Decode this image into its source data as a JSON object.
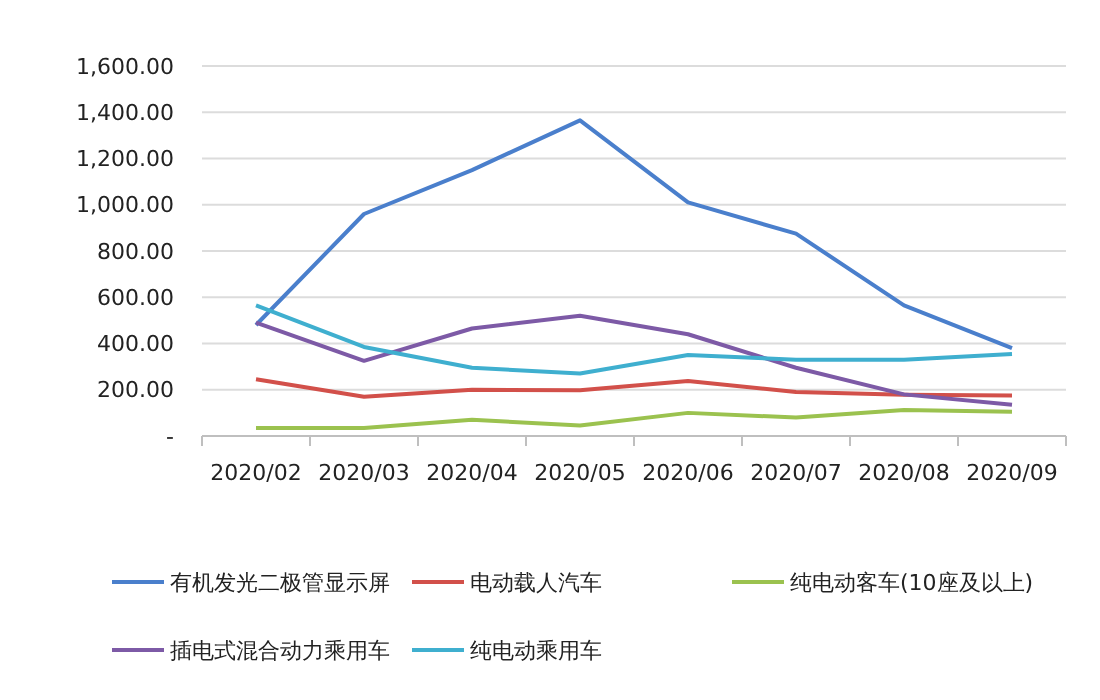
{
  "chart_data": {
    "type": "line",
    "categories": [
      "2020/02",
      "2020/03",
      "2020/04",
      "2020/05",
      "2020/06",
      "2020/07",
      "2020/08",
      "2020/09"
    ],
    "series": [
      {
        "name": "有机发光二极管显示屏",
        "color": "#4a7fcc",
        "values": [
          480,
          960,
          1150,
          1365,
          1010,
          875,
          565,
          380
        ]
      },
      {
        "name": "电动载人汽车",
        "color": "#d2504a",
        "values": [
          245,
          170,
          200,
          198,
          238,
          190,
          178,
          175
        ]
      },
      {
        "name": "纯电动客车(10座及以上)",
        "color": "#9bc24f",
        "values": [
          35,
          35,
          70,
          45,
          100,
          80,
          112,
          105
        ]
      },
      {
        "name": "插电式混合动力乘用车",
        "color": "#7d5aa6",
        "values": [
          490,
          325,
          465,
          520,
          440,
          295,
          180,
          135
        ]
      },
      {
        "name": "纯电动乘用车",
        "color": "#3fafcf",
        "values": [
          565,
          385,
          295,
          270,
          350,
          330,
          330,
          355
        ]
      }
    ],
    "ylim": [
      0,
      1600
    ],
    "yticks": [
      {
        "value": 0,
        "label": "-"
      },
      {
        "value": 200,
        "label": "200.00"
      },
      {
        "value": 400,
        "label": "400.00"
      },
      {
        "value": 600,
        "label": "600.00"
      },
      {
        "value": 800,
        "label": "800.00"
      },
      {
        "value": 1000,
        "label": "1,000.00"
      },
      {
        "value": 1200,
        "label": "1,200.00"
      },
      {
        "value": 1400,
        "label": "1,400.00"
      },
      {
        "value": 1600,
        "label": "1,600.00"
      }
    ],
    "grid": "y",
    "legend": "bottom",
    "marker": "none",
    "line_style": "solid"
  }
}
